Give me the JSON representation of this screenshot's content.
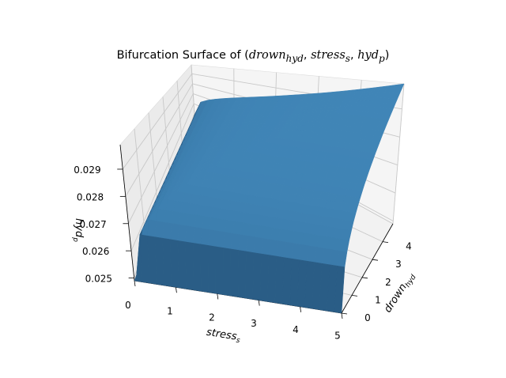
{
  "chart_data": {
    "type": "surface3d",
    "title_prefix": "Bifurcation Surface of ",
    "title_math": "(drown_hyd, stress_s, hyd_p)",
    "xlabel": "stress_s",
    "ylabel": "drown_hyd",
    "zlabel": "hyd_p",
    "xlim": [
      0,
      5
    ],
    "ylim": [
      0,
      5
    ],
    "zlim": [
      0.0249,
      0.0299
    ],
    "x_ticks": [
      "0",
      "1",
      "2",
      "3",
      "4",
      "5"
    ],
    "y_ticks": [
      "0",
      "1",
      "2",
      "3",
      "4"
    ],
    "z_ticks": [
      "0.025",
      "0.026",
      "0.027",
      "0.028",
      "0.029"
    ],
    "grid": true,
    "surface_color": "#3a7aaa",
    "surface_corners": [
      {
        "stress_s": 0,
        "drown_hyd": 0,
        "hyd_p": 0.0249
      },
      {
        "stress_s": 5,
        "drown_hyd": 0,
        "hyd_p": 0.0299
      },
      {
        "stress_s": 0,
        "drown_hyd": 5,
        "hyd_p": 0.0299
      },
      {
        "stress_s": 5,
        "drown_hyd": 5,
        "hyd_p": 0.0299
      }
    ]
  }
}
